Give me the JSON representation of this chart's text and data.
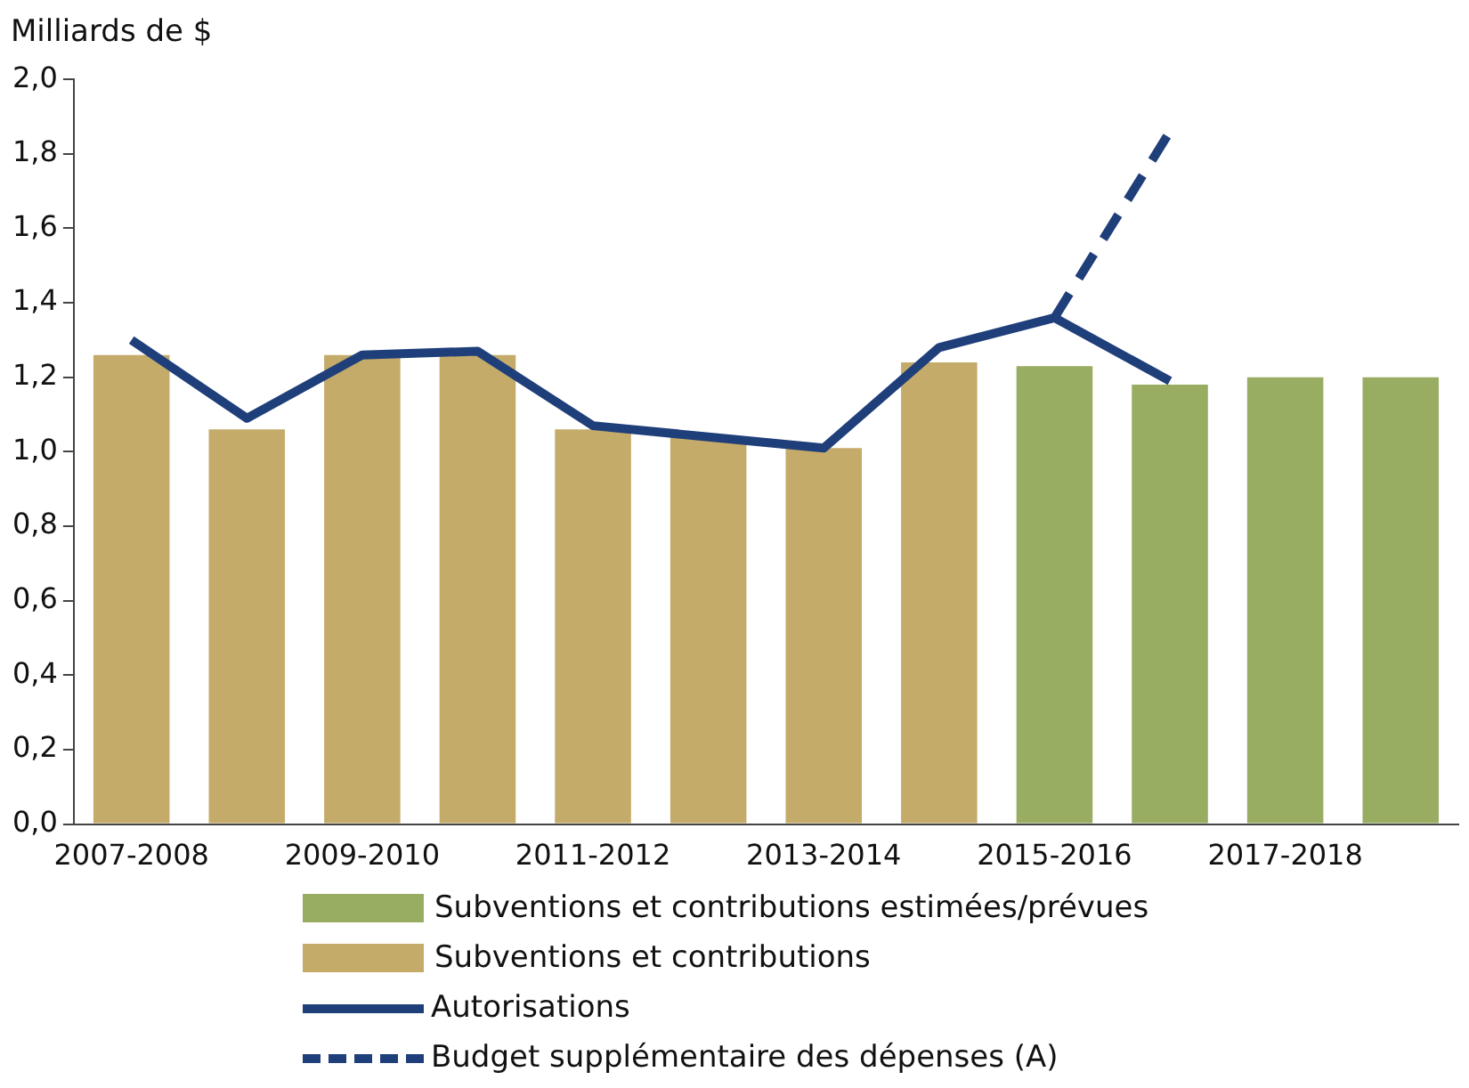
{
  "chart_data": {
    "type": "bar",
    "ylabel": "Milliards de $",
    "categories": [
      "2007-2008",
      null,
      "2009-2010",
      null,
      "2011-2012",
      null,
      "2013-2014",
      null,
      "2015-2016",
      null,
      "2017-2018",
      null
    ],
    "stacked": true,
    "series": [
      {
        "name": "Subventions et contributions estimées/prévues",
        "color": "#98ad62",
        "values": [
          null,
          null,
          null,
          null,
          null,
          null,
          null,
          null,
          1.23,
          1.18,
          1.2,
          1.2
        ]
      },
      {
        "name": "Subventions et contributions",
        "color": "#c4ab6a",
        "values": [
          1.26,
          1.06,
          1.26,
          1.26,
          1.06,
          1.04,
          1.01,
          1.24,
          null,
          null,
          null,
          null
        ]
      },
      {
        "name": "Autorisations",
        "type": "line",
        "color": "#1f3f7a",
        "line_style": "solid",
        "values": [
          1.3,
          1.09,
          1.26,
          1.27,
          1.07,
          1.04,
          1.01,
          1.28,
          1.36,
          1.19,
          null,
          null
        ]
      },
      {
        "name": "Budget supplémentaire des dépenses (A)",
        "type": "line",
        "color": "#1f3f7a",
        "line_style": "dashed",
        "values": [
          null,
          null,
          null,
          null,
          null,
          null,
          null,
          null,
          1.36,
          1.86,
          null,
          null
        ]
      }
    ],
    "ylim": [
      0,
      2
    ],
    "yticks": [
      {
        "value": 0,
        "label": "0,0"
      },
      {
        "value": 0.2,
        "label": "0,2"
      },
      {
        "value": 0.4,
        "label": "0,4"
      },
      {
        "value": 0.6,
        "label": "0,6"
      },
      {
        "value": 0.8,
        "label": "0,8"
      },
      {
        "value": 1,
        "label": "1,0"
      },
      {
        "value": 1.2,
        "label": "1,2"
      },
      {
        "value": 1.4,
        "label": "1,4"
      },
      {
        "value": 1.6,
        "label": "1,6"
      },
      {
        "value": 1.8,
        "label": "1,8"
      },
      {
        "value": 2,
        "label": "2,0"
      }
    ],
    "grid": false,
    "marker": "none",
    "legend": "bottom"
  }
}
